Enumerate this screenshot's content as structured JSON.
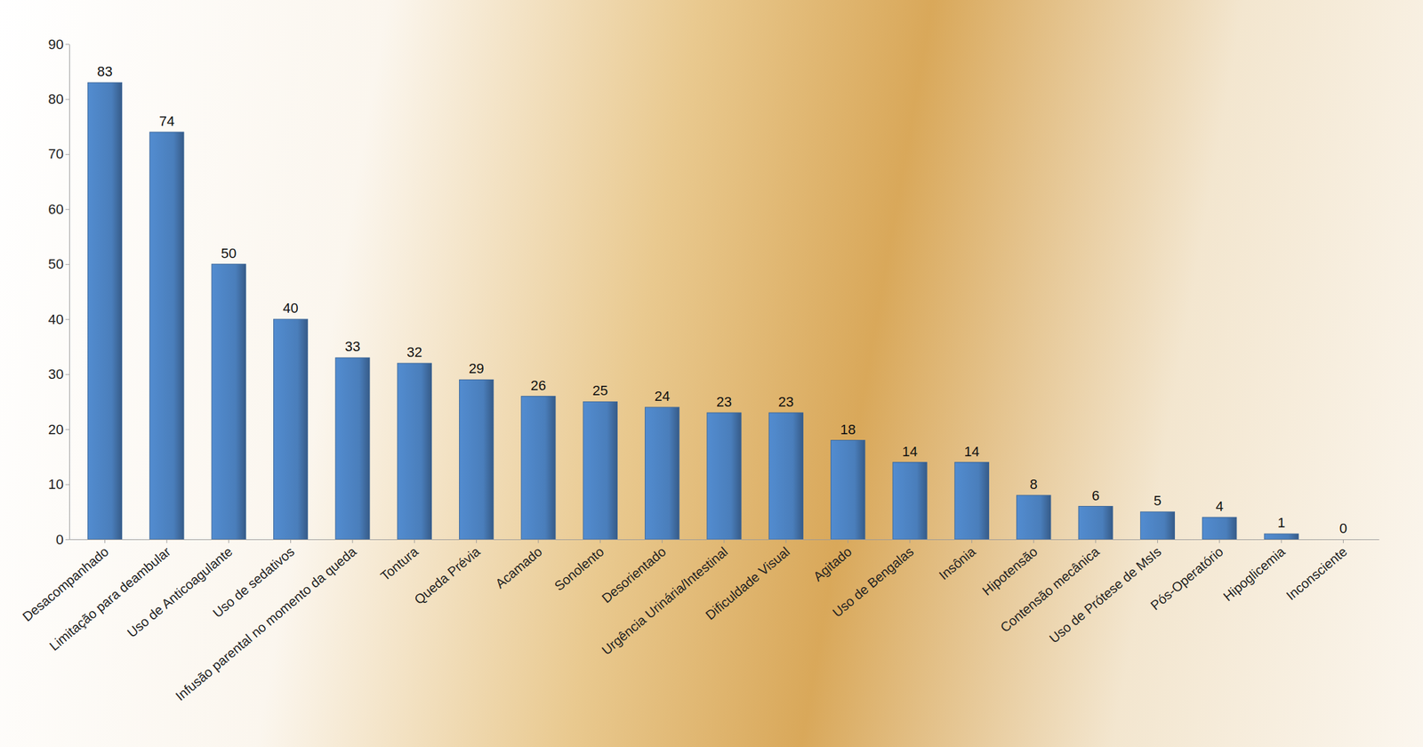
{
  "chart_data": {
    "type": "bar",
    "categories": [
      "Desacompanhado",
      "Limitação para deambular",
      "Uso de Anticoagulante",
      "Uso de sedativos",
      "Infusão parental no momento da queda",
      "Tontura",
      "Queda Prévia",
      "Acamado",
      "Sonolento",
      "Desorientado",
      "Urgência Urinária/Intestinal",
      "Dificuldade Visual",
      "Agitado",
      "Uso de Bengalas",
      "Insônia",
      "Hipotensão",
      "Contensão mecânica",
      "Uso de Prótese de MsIs",
      "Pós-Operatório",
      "Hipoglicemia",
      "Inconsciente"
    ],
    "values": [
      83,
      74,
      50,
      40,
      33,
      32,
      29,
      26,
      25,
      24,
      23,
      23,
      18,
      14,
      14,
      8,
      6,
      5,
      4,
      1,
      0
    ],
    "color": "#4a7ebb",
    "ylim": [
      0,
      90
    ],
    "yticks": [
      0,
      10,
      20,
      30,
      40,
      50,
      60,
      70,
      80,
      90
    ],
    "grid": false,
    "data_labels": true
  }
}
